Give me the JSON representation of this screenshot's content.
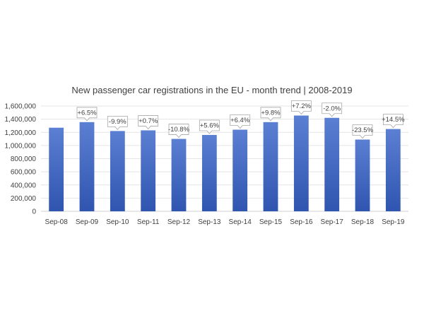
{
  "chart_data": {
    "type": "bar",
    "title": "New passenger car registrations in the EU - month trend | 2008-2019",
    "xlabel": "",
    "ylabel": "",
    "categories": [
      "Sep-08",
      "Sep-09",
      "Sep-10",
      "Sep-11",
      "Sep-12",
      "Sep-13",
      "Sep-14",
      "Sep-15",
      "Sep-16",
      "Sep-17",
      "Sep-18",
      "Sep-19"
    ],
    "values": [
      1270000,
      1355000,
      1220000,
      1230000,
      1100000,
      1160000,
      1240000,
      1355000,
      1455000,
      1420000,
      1090000,
      1250000
    ],
    "change_labels": [
      null,
      "+6.5%",
      "-9.9%",
      "+0.7%",
      "-10.8%",
      "+5.6%",
      "+6.4%",
      "+9.8%",
      "+7.2%",
      "-2.0%",
      "-23.5%",
      "+14.5%"
    ],
    "yticks": [
      "0",
      "200,000",
      "400,000",
      "600,000",
      "800,000",
      "1,000,000",
      "1,200,000",
      "1,400,000",
      "1,600,000"
    ],
    "ylim": [
      0,
      1600000
    ],
    "grid": true,
    "legend": "none",
    "colors": {
      "bar_top": "#5b7fd2",
      "bar_bottom": "#2f55b0",
      "text": "#404040",
      "grid": "#e4e4e4"
    }
  }
}
